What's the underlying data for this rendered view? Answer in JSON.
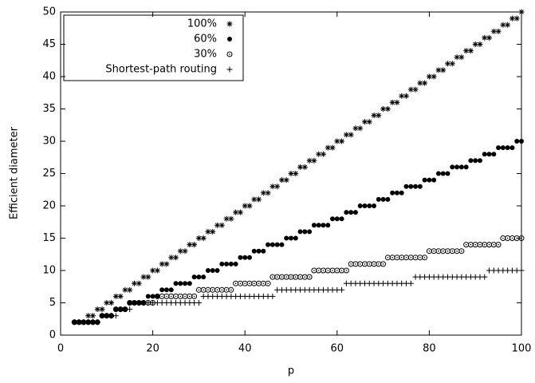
{
  "chart_data": {
    "type": "scatter",
    "x_label": "p",
    "y_label": "Efficient diameter",
    "xlim": [
      0,
      100
    ],
    "ylim": [
      0,
      50
    ],
    "xticks": [
      0,
      20,
      40,
      60,
      80,
      100
    ],
    "yticks": [
      0,
      5,
      10,
      15,
      20,
      25,
      30,
      35,
      40,
      45,
      50
    ],
    "legend": "upper left",
    "x": [
      3,
      4,
      5,
      6,
      7,
      8,
      9,
      10,
      11,
      12,
      13,
      14,
      15,
      16,
      17,
      18,
      19,
      20,
      21,
      22,
      23,
      24,
      25,
      26,
      27,
      28,
      29,
      30,
      31,
      32,
      33,
      34,
      35,
      36,
      37,
      38,
      39,
      40,
      41,
      42,
      43,
      44,
      45,
      46,
      47,
      48,
      49,
      50,
      51,
      52,
      53,
      54,
      55,
      56,
      57,
      58,
      59,
      60,
      61,
      62,
      63,
      64,
      65,
      66,
      67,
      68,
      69,
      70,
      71,
      72,
      73,
      74,
      75,
      76,
      77,
      78,
      79,
      80,
      81,
      82,
      83,
      84,
      85,
      86,
      87,
      88,
      89,
      90,
      91,
      92,
      93,
      94,
      95,
      96,
      97,
      98,
      99,
      100
    ],
    "series": [
      {
        "name": "100%",
        "color": "#000000",
        "marker": "asterisk",
        "values": [
          2,
          2,
          2,
          3,
          3,
          4,
          4,
          5,
          5,
          6,
          6,
          7,
          7,
          8,
          8,
          9,
          9,
          10,
          10,
          11,
          11,
          12,
          12,
          13,
          13,
          14,
          14,
          15,
          15,
          16,
          16,
          17,
          17,
          18,
          18,
          19,
          19,
          20,
          20,
          21,
          21,
          22,
          22,
          23,
          23,
          24,
          24,
          25,
          25,
          26,
          26,
          27,
          27,
          28,
          28,
          29,
          29,
          30,
          30,
          31,
          31,
          32,
          32,
          33,
          33,
          34,
          34,
          35,
          35,
          36,
          36,
          37,
          37,
          38,
          38,
          39,
          39,
          40,
          40,
          41,
          41,
          42,
          42,
          43,
          43,
          44,
          44,
          45,
          45,
          46,
          46,
          47,
          47,
          48,
          48,
          49,
          49,
          50
        ]
      },
      {
        "name": "60%",
        "color": "#000000",
        "marker": "filled-circle",
        "values": [
          2,
          2,
          2,
          2,
          2,
          2,
          3,
          3,
          3,
          4,
          4,
          4,
          5,
          5,
          5,
          5,
          6,
          6,
          6,
          7,
          7,
          7,
          8,
          8,
          8,
          8,
          9,
          9,
          9,
          10,
          10,
          10,
          11,
          11,
          11,
          11,
          12,
          12,
          12,
          13,
          13,
          13,
          14,
          14,
          14,
          14,
          15,
          15,
          15,
          16,
          16,
          16,
          17,
          17,
          17,
          17,
          18,
          18,
          18,
          19,
          19,
          19,
          20,
          20,
          20,
          20,
          21,
          21,
          21,
          22,
          22,
          22,
          23,
          23,
          23,
          23,
          24,
          24,
          24,
          25,
          25,
          25,
          26,
          26,
          26,
          26,
          27,
          27,
          27,
          28,
          28,
          28,
          29,
          29,
          29,
          29,
          30,
          30
        ]
      },
      {
        "name": "30%",
        "color": "#000000",
        "marker": "open-circle",
        "values": [
          2,
          2,
          2,
          2,
          2,
          2,
          3,
          3,
          3,
          4,
          4,
          4,
          5,
          5,
          5,
          5,
          5,
          5,
          6,
          6,
          6,
          6,
          6,
          6,
          6,
          6,
          6,
          7,
          7,
          7,
          7,
          7,
          7,
          7,
          7,
          8,
          8,
          8,
          8,
          8,
          8,
          8,
          8,
          9,
          9,
          9,
          9,
          9,
          9,
          9,
          9,
          9,
          10,
          10,
          10,
          10,
          10,
          10,
          10,
          10,
          11,
          11,
          11,
          11,
          11,
          11,
          11,
          11,
          12,
          12,
          12,
          12,
          12,
          12,
          12,
          12,
          12,
          13,
          13,
          13,
          13,
          13,
          13,
          13,
          13,
          14,
          14,
          14,
          14,
          14,
          14,
          14,
          14,
          15,
          15,
          15,
          15,
          15
        ]
      },
      {
        "name": "Shortest-path routing",
        "color": "#000000",
        "marker": "plus",
        "values": [
          2,
          2,
          2,
          2,
          2,
          2,
          3,
          3,
          3,
          3,
          4,
          4,
          4,
          5,
          5,
          5,
          5,
          5,
          5,
          5,
          5,
          5,
          5,
          5,
          5,
          5,
          5,
          5,
          6,
          6,
          6,
          6,
          6,
          6,
          6,
          6,
          6,
          6,
          6,
          6,
          6,
          6,
          6,
          6,
          7,
          7,
          7,
          7,
          7,
          7,
          7,
          7,
          7,
          7,
          7,
          7,
          7,
          7,
          7,
          8,
          8,
          8,
          8,
          8,
          8,
          8,
          8,
          8,
          8,
          8,
          8,
          8,
          8,
          8,
          9,
          9,
          9,
          9,
          9,
          9,
          9,
          9,
          9,
          9,
          9,
          9,
          9,
          9,
          9,
          9,
          10,
          10,
          10,
          10,
          10,
          10,
          10,
          10
        ]
      }
    ]
  }
}
